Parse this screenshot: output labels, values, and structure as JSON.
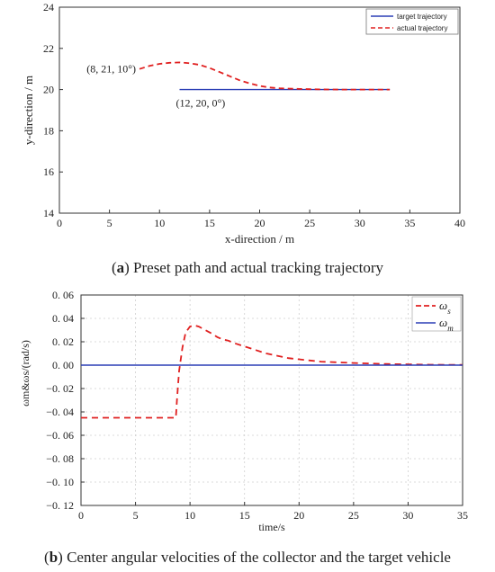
{
  "chart_data": [
    {
      "type": "line",
      "xlabel": "x-direction / m",
      "ylabel": "y-direction / m",
      "xlim": [
        0,
        40
      ],
      "ylim": [
        14,
        24
      ],
      "xticks": [
        0,
        5,
        10,
        15,
        20,
        25,
        30,
        35,
        40
      ],
      "yticks": [
        14,
        16,
        18,
        20,
        22,
        24
      ],
      "grid": false,
      "legend_position": "top-right",
      "series": [
        {
          "name": "target trajectory",
          "color": "#2b3fb5",
          "style": "solid",
          "x": [
            12,
            33
          ],
          "y": [
            20,
            20
          ]
        },
        {
          "name": "actual trajectory",
          "color": "#e02020",
          "style": "dashed",
          "x": [
            8,
            9,
            10,
            11,
            12,
            13,
            14,
            15,
            16,
            17,
            18,
            19,
            20,
            21,
            22,
            24,
            26,
            28,
            30,
            33
          ],
          "y": [
            21.0,
            21.15,
            21.25,
            21.3,
            21.32,
            21.28,
            21.2,
            21.05,
            20.85,
            20.65,
            20.45,
            20.3,
            20.18,
            20.1,
            20.06,
            20.03,
            20.01,
            20.0,
            20.0,
            20.0
          ]
        }
      ],
      "annotations": [
        {
          "text": "(8, 21, 10°)",
          "x": 8,
          "y": 21
        },
        {
          "text": "(12, 20, 0°)",
          "x": 12,
          "y": 20
        }
      ]
    },
    {
      "type": "line",
      "xlabel": "time/s",
      "ylabel": "ωm&ωs/(rad/s)",
      "xlim": [
        0,
        35
      ],
      "ylim": [
        -0.12,
        0.06
      ],
      "xticks": [
        0,
        5,
        10,
        15,
        20,
        25,
        30,
        35
      ],
      "yticks": [
        0.06,
        0.04,
        0.02,
        0.0,
        -0.02,
        -0.04,
        -0.06,
        -0.08,
        -0.1,
        -0.12
      ],
      "ytick_labels": [
        "0. 06",
        "0. 04",
        "0. 02",
        "0. 00",
        "−0. 02",
        "−0. 04",
        "−0. 06",
        "−0. 08",
        "−0. 10",
        "−0. 12"
      ],
      "xtick_labels": [
        "0",
        "5",
        "10",
        "15",
        "20",
        "25",
        "30",
        "35"
      ],
      "grid": true,
      "legend_position": "top-right",
      "series": [
        {
          "name": "ωs",
          "color": "#e02020",
          "style": "dashed",
          "x": [
            0,
            8.7,
            8.8,
            9.0,
            9.3,
            9.6,
            10.0,
            10.4,
            10.8,
            11.2,
            11.6,
            12.0,
            12.5,
            13.0,
            13.5,
            14.0,
            15.0,
            16.0,
            17.0,
            18.0,
            19.0,
            20.0,
            21.0,
            22.0,
            24.0,
            26.0,
            28.0,
            30.0,
            32.0,
            35.0
          ],
          "y": [
            -0.045,
            -0.045,
            -0.03,
            -0.005,
            0.015,
            0.028,
            0.033,
            0.034,
            0.033,
            0.031,
            0.029,
            0.027,
            0.024,
            0.022,
            0.021,
            0.019,
            0.016,
            0.013,
            0.01,
            0.008,
            0.006,
            0.005,
            0.004,
            0.003,
            0.0022,
            0.0015,
            0.001,
            0.0007,
            0.0004,
            0.0002
          ]
        },
        {
          "name": "ωm",
          "color": "#2b3fb5",
          "style": "solid",
          "x": [
            0,
            35
          ],
          "y": [
            0,
            0
          ]
        }
      ]
    }
  ],
  "captions": {
    "a_letter": "a",
    "a_text": " Preset path and actual tracking trajectory",
    "b_letter": "b",
    "b_text": " Center angular velocities of the collector and the target vehicle"
  },
  "legend_a": [
    "target trajectory",
    "actual trajectory"
  ],
  "legend_b": {
    "s_symbol": "ω",
    "s_sub": "s",
    "m_symbol": "ω",
    "m_sub": "m"
  }
}
